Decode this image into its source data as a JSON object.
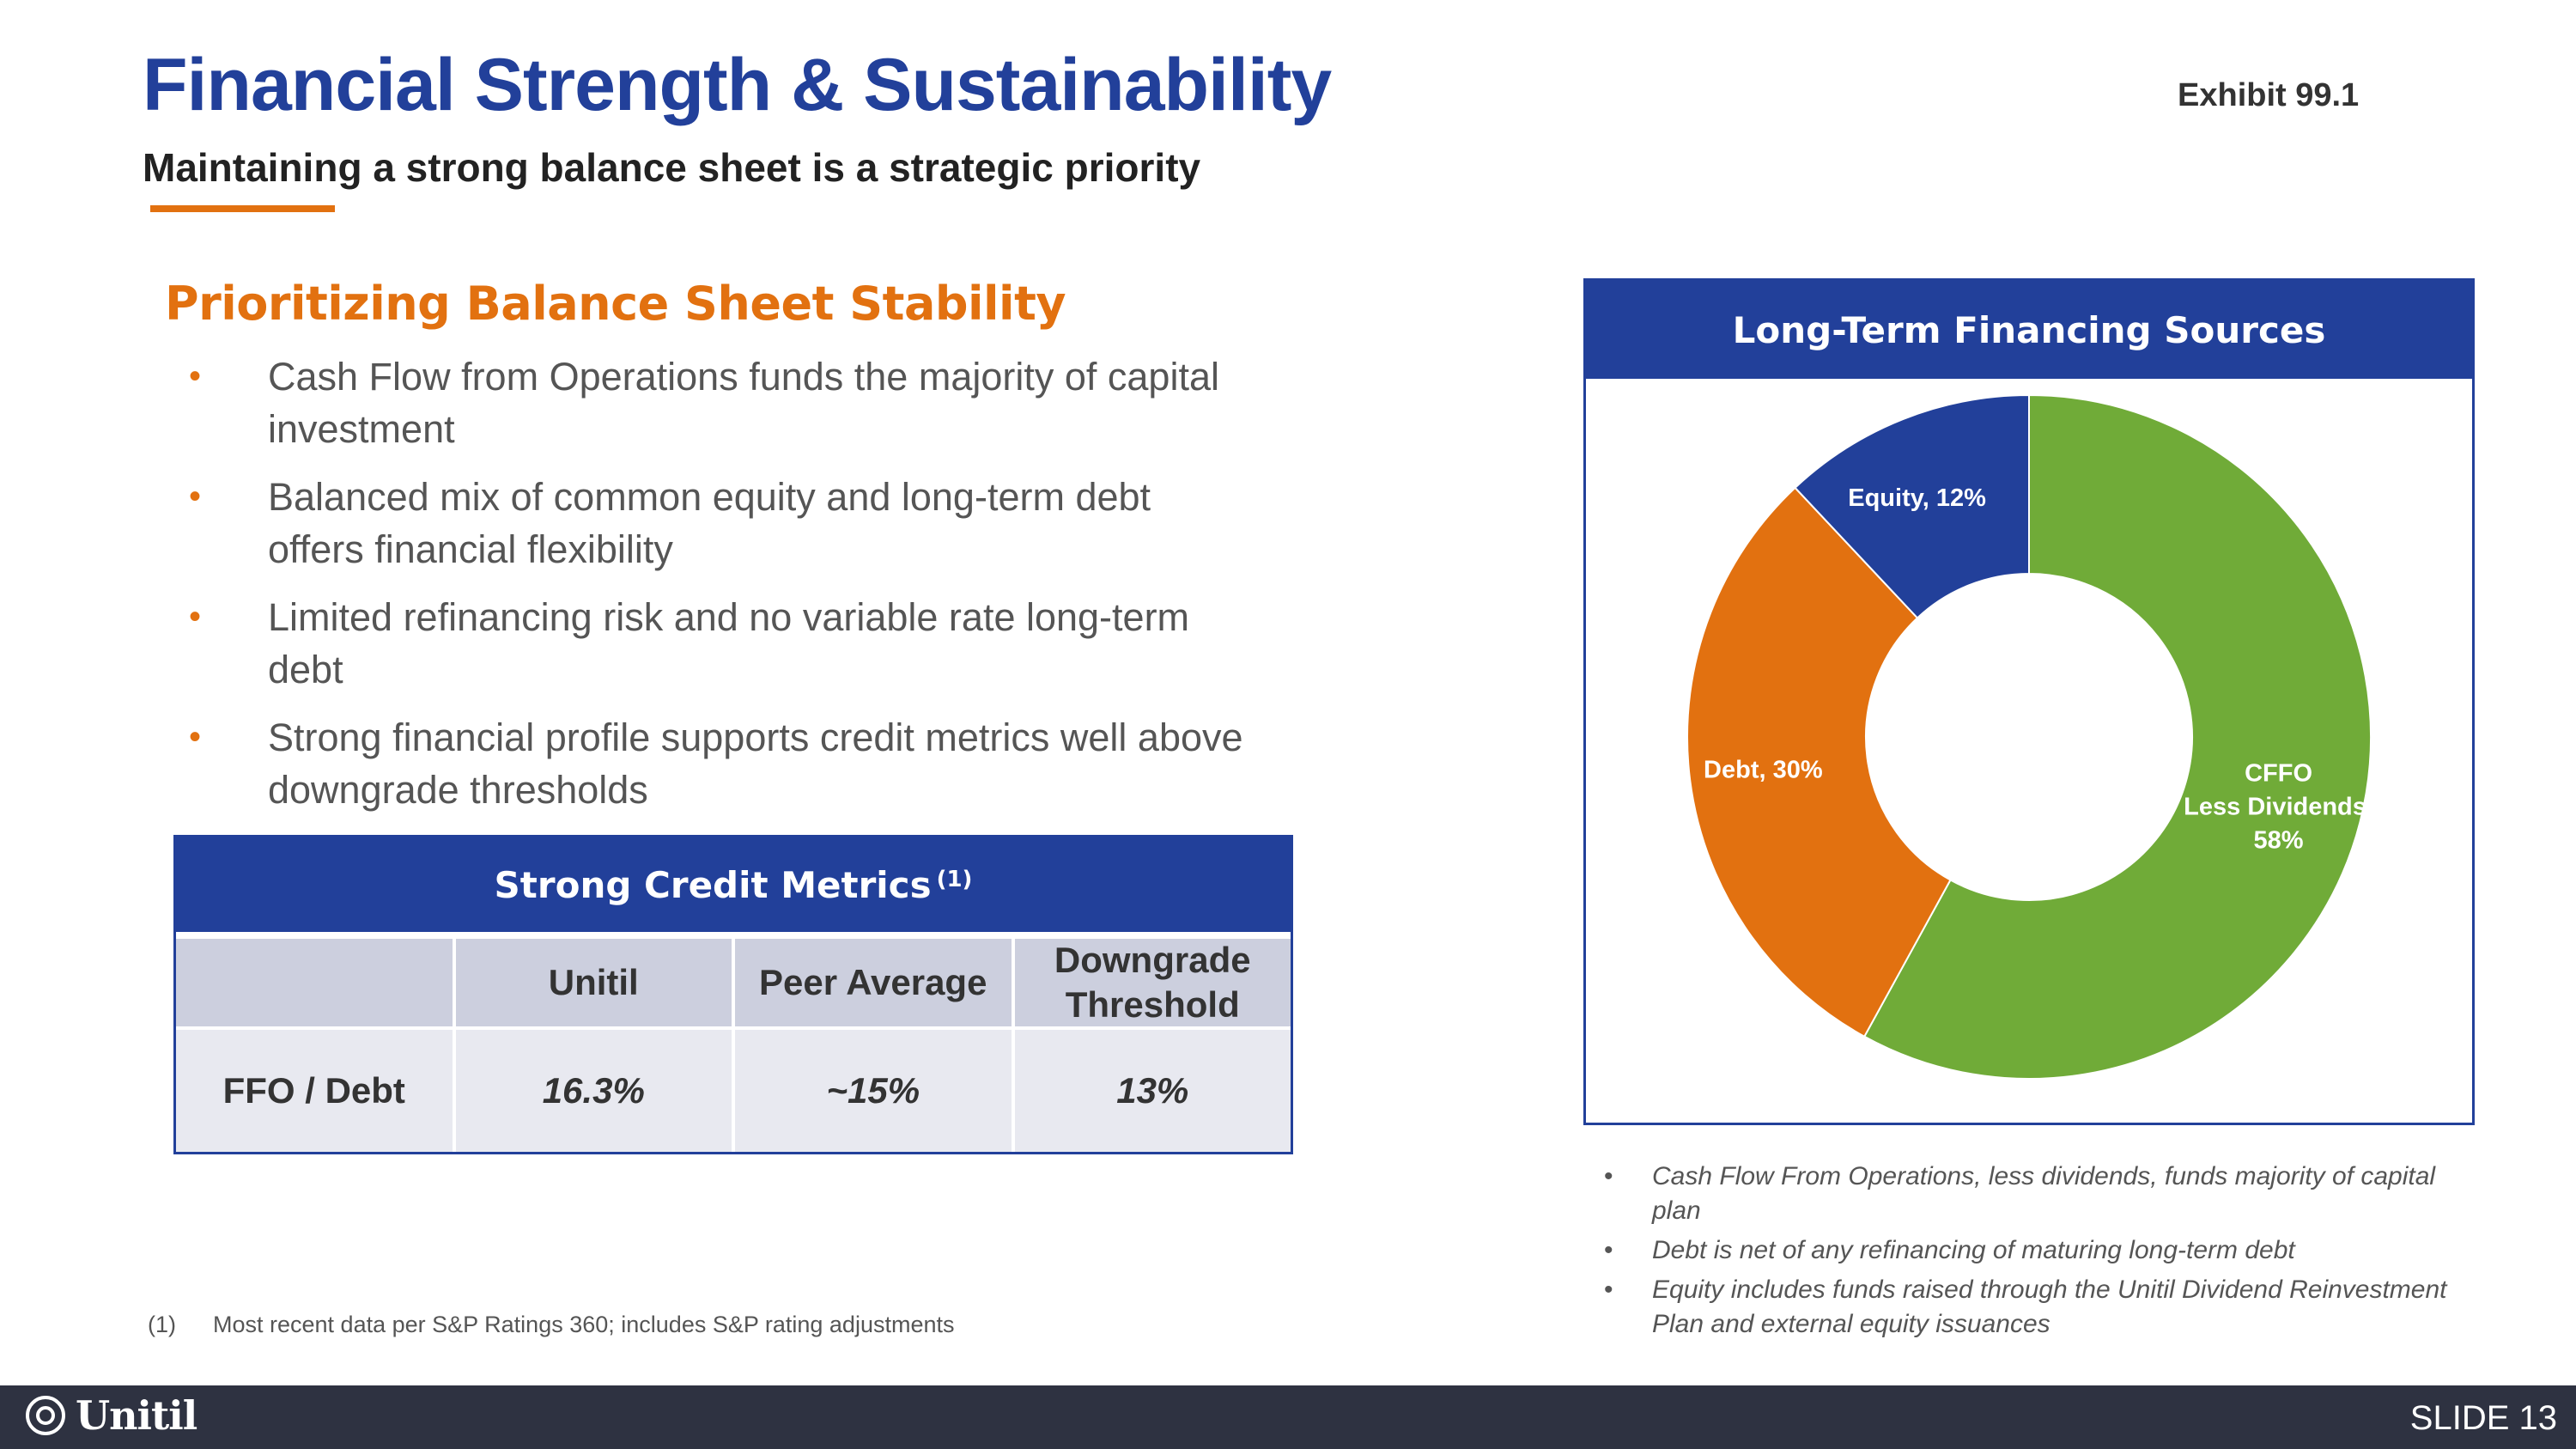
{
  "header": {
    "title": "Financial Strength & Sustainability",
    "exhibit": "Exhibit 99.1",
    "subtitle": "Maintaining a strong balance sheet is a strategic priority"
  },
  "section": {
    "title": "Prioritizing Balance Sheet Stability",
    "bullets": [
      "Cash Flow from Operations funds the majority of capital investment",
      "Balanced mix of common equity and long-term debt offers financial flexibility",
      "Limited refinancing risk and no variable rate long-term debt",
      "Strong financial profile supports credit metrics well above downgrade thresholds"
    ]
  },
  "metrics_table": {
    "title": "Strong Credit Metrics",
    "title_note": "(1)",
    "columns": [
      "",
      "Unitil",
      "Peer Average",
      "Downgrade Threshold"
    ],
    "rows": [
      [
        "FFO / Debt",
        "16.3%",
        "~15%",
        "13%"
      ]
    ]
  },
  "footnote": {
    "number": "(1)",
    "text": "Most recent data per S&P Ratings 360; includes S&P rating adjustments"
  },
  "chart_data": {
    "type": "pie",
    "donut": true,
    "title": "Long-Term Financing Sources",
    "slices": [
      {
        "label": "CFFO, Less Dividends, 58%",
        "value": 58,
        "color": "#70ab38"
      },
      {
        "label": "Debt, 30%",
        "value": 30,
        "color": "#e27110"
      },
      {
        "label": "Equity, 12%",
        "value": 12,
        "color": "#22409a"
      }
    ],
    "start": "12 o'clock",
    "direction": "clockwise"
  },
  "chart_notes": [
    "Cash Flow From Operations, less dividends, funds majority of capital plan",
    "Debt is net of any refinancing of maturing long-term debt",
    "Equity includes funds raised through the Unitil Dividend Reinvestment Plan and external equity issuances"
  ],
  "footer": {
    "logo_text": "Unitil",
    "slide": "SLIDE 13"
  },
  "colors": {
    "brand_blue": "#22409a",
    "accent_orange": "#e27110",
    "green": "#70ab38",
    "footer_bg": "#2e3241"
  },
  "icons": {
    "logo": "unitil-swirl-icon",
    "bullet": "bullet-dot-icon"
  }
}
